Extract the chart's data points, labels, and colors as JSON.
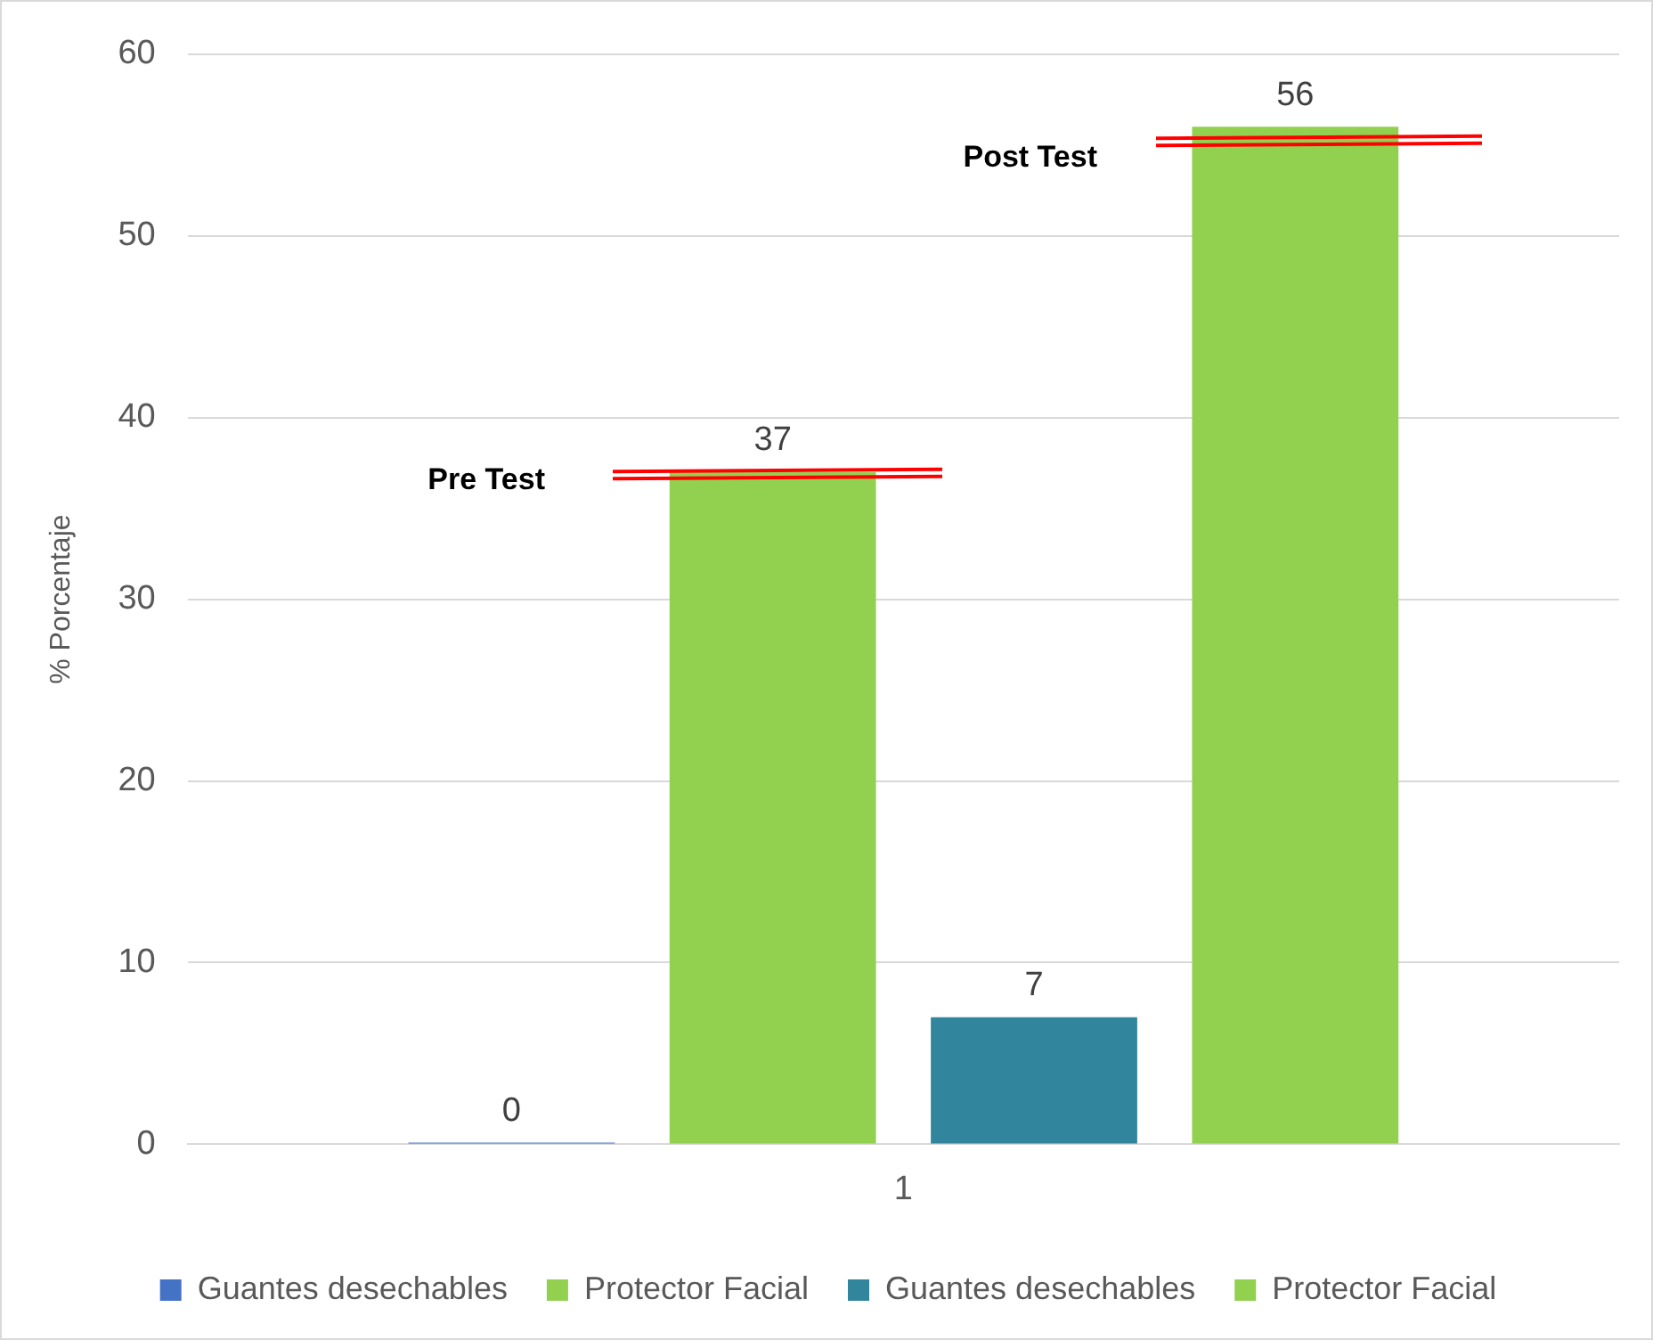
{
  "chart_data": {
    "type": "bar",
    "ylabel": "% Porcentaje",
    "categories": [
      "1"
    ],
    "series": [
      {
        "name": "Guantes desechables",
        "color": "#4472c4",
        "values": [
          0
        ]
      },
      {
        "name": "Protector Facial",
        "color": "#92d050",
        "values": [
          37
        ]
      },
      {
        "name": "Guantes desechables",
        "color": "#31859c",
        "values": [
          7
        ]
      },
      {
        "name": "Protector Facial",
        "color": "#92d050",
        "values": [
          56
        ]
      }
    ],
    "ylim": [
      0,
      60
    ],
    "yticks": [
      0,
      10,
      20,
      30,
      40,
      50,
      60
    ],
    "grid": "y",
    "legend": "bottom",
    "data_labels": true,
    "annotations": [
      "Pre Test",
      "Post Test"
    ]
  }
}
